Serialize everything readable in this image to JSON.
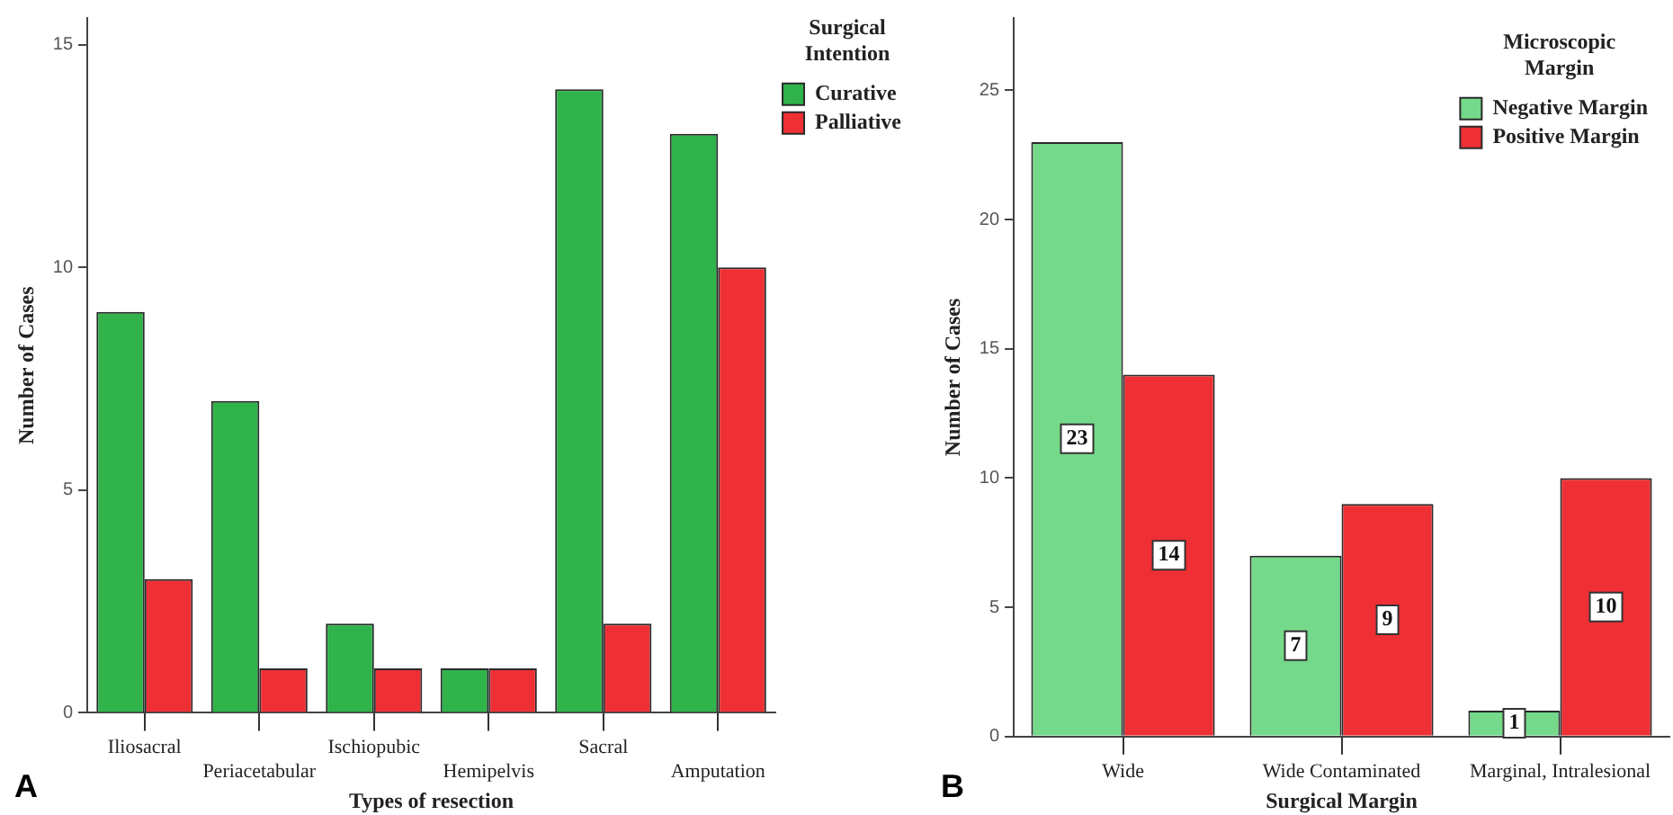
{
  "chart_data": [
    {
      "type": "bar",
      "categories": [
        "Iliosacral",
        "Periacetabular",
        "Ischiopubic",
        "Hemipelvis",
        "Sacral",
        "Amputation"
      ],
      "xlabel": "Types of resection",
      "ylabel": "Number of Cases",
      "legend_title": "Surgical Intention",
      "legend": "right",
      "ylim": [
        0,
        15.6
      ],
      "yticks": [
        0,
        5,
        10,
        15
      ],
      "annotations": [
        "A"
      ],
      "series": [
        {
          "name": "Curative",
          "color": "#2fb34a",
          "values": [
            9,
            7,
            2,
            1,
            14,
            13
          ]
        },
        {
          "name": "Palliative",
          "color": "#ee3035",
          "values": [
            3,
            1,
            1,
            1,
            2,
            10
          ]
        }
      ]
    },
    {
      "type": "bar",
      "categories": [
        "Wide",
        "Wide Contaminated",
        "Marginal, Intralesional"
      ],
      "xlabel": "Surgical Margin",
      "ylabel": "Number of Cases",
      "legend_title": "Microscopic Margin",
      "legend": "top right",
      "ylim": [
        0,
        27.8
      ],
      "yticks": [
        0,
        5,
        10,
        15,
        20,
        25
      ],
      "data_labels": true,
      "annotations": [
        "B"
      ],
      "series": [
        {
          "name": "Negative Margin",
          "color": "#74d98a",
          "values": [
            23,
            7,
            1
          ]
        },
        {
          "name": "Positive Margin",
          "color": "#ee3035",
          "values": [
            14,
            9,
            10
          ]
        }
      ]
    }
  ]
}
